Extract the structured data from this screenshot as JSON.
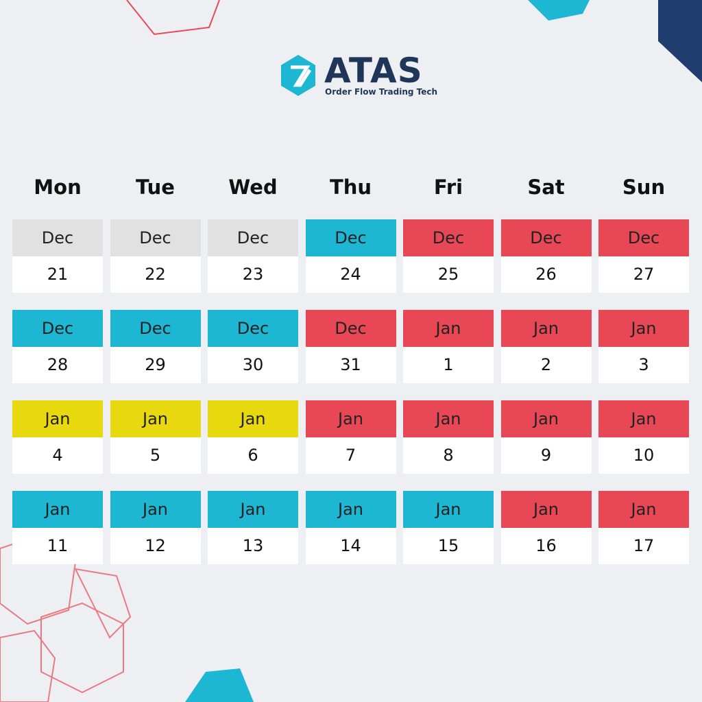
{
  "logo": {
    "name": "ATAS",
    "tagline": "Order Flow Trading Tech"
  },
  "weekdays": [
    "Mon",
    "Tue",
    "Wed",
    "Thu",
    "Fri",
    "Sat",
    "Sun"
  ],
  "weeks": [
    [
      {
        "month": "Dec",
        "day": 21,
        "color": "#e1e1e1"
      },
      {
        "month": "Dec",
        "day": 22,
        "color": "#e1e1e1"
      },
      {
        "month": "Dec",
        "day": 23,
        "color": "#e1e1e1"
      },
      {
        "month": "Dec",
        "day": 24,
        "color": "#1db6d3"
      },
      {
        "month": "Dec",
        "day": 25,
        "color": "#e84855"
      },
      {
        "month": "Dec",
        "day": 26,
        "color": "#e84855"
      },
      {
        "month": "Dec",
        "day": 27,
        "color": "#e84855"
      }
    ],
    [
      {
        "month": "Dec",
        "day": 28,
        "color": "#1db6d3"
      },
      {
        "month": "Dec",
        "day": 29,
        "color": "#1db6d3"
      },
      {
        "month": "Dec",
        "day": 30,
        "color": "#1db6d3"
      },
      {
        "month": "Dec",
        "day": 31,
        "color": "#e84855"
      },
      {
        "month": "Jan",
        "day": 1,
        "color": "#e84855"
      },
      {
        "month": "Jan",
        "day": 2,
        "color": "#e84855"
      },
      {
        "month": "Jan",
        "day": 3,
        "color": "#e84855"
      }
    ],
    [
      {
        "month": "Jan",
        "day": 4,
        "color": "#e8d80e"
      },
      {
        "month": "Jan",
        "day": 5,
        "color": "#e8d80e"
      },
      {
        "month": "Jan",
        "day": 6,
        "color": "#e8d80e"
      },
      {
        "month": "Jan",
        "day": 7,
        "color": "#e84855"
      },
      {
        "month": "Jan",
        "day": 8,
        "color": "#e84855"
      },
      {
        "month": "Jan",
        "day": 9,
        "color": "#e84855"
      },
      {
        "month": "Jan",
        "day": 10,
        "color": "#e84855"
      }
    ],
    [
      {
        "month": "Jan",
        "day": 11,
        "color": "#1db6d3"
      },
      {
        "month": "Jan",
        "day": 12,
        "color": "#1db6d3"
      },
      {
        "month": "Jan",
        "day": 13,
        "color": "#1db6d3"
      },
      {
        "month": "Jan",
        "day": 14,
        "color": "#1db6d3"
      },
      {
        "month": "Jan",
        "day": 15,
        "color": "#1db6d3"
      },
      {
        "month": "Jan",
        "day": 16,
        "color": "#e84855"
      },
      {
        "month": "Jan",
        "day": 17,
        "color": "#e84855"
      }
    ]
  ]
}
